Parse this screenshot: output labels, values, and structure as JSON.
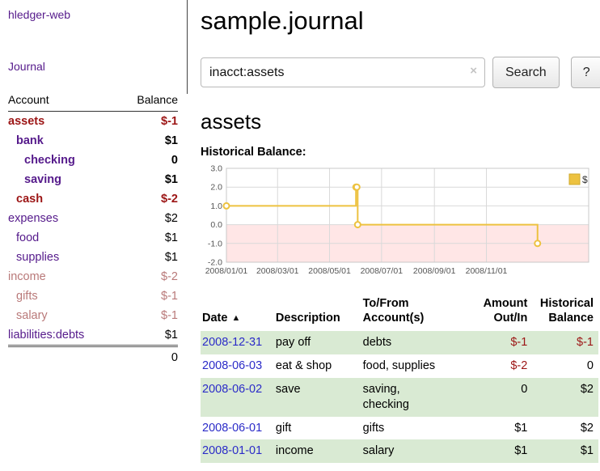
{
  "app": {
    "title": "hledger-web",
    "journal_link": "Journal"
  },
  "sidebar": {
    "header": {
      "account": "Account",
      "balance": "Balance"
    },
    "accounts": [
      {
        "name": "assets",
        "depth": 0,
        "bold": true,
        "balance": "$-1"
      },
      {
        "name": "bank",
        "depth": 1,
        "bold": true,
        "balance": "$1"
      },
      {
        "name": "checking",
        "depth": 2,
        "bold": true,
        "balance": "0"
      },
      {
        "name": "saving",
        "depth": 2,
        "bold": true,
        "balance": "$1"
      },
      {
        "name": "cash",
        "depth": 1,
        "bold": true,
        "balance": "$-2"
      },
      {
        "name": "expenses",
        "depth": 0,
        "bold": false,
        "balance": "$2"
      },
      {
        "name": "food",
        "depth": 1,
        "bold": false,
        "balance": "$1"
      },
      {
        "name": "supplies",
        "depth": 1,
        "bold": false,
        "balance": "$1"
      },
      {
        "name": "income",
        "depth": 0,
        "bold": false,
        "balance": "$-2"
      },
      {
        "name": "gifts",
        "depth": 1,
        "bold": false,
        "balance": "$-1"
      },
      {
        "name": "salary",
        "depth": 1,
        "bold": false,
        "balance": "$-1"
      },
      {
        "name": "liabilities:debts",
        "depth": 0,
        "bold": false,
        "balance": "$1"
      }
    ],
    "total": "0"
  },
  "main": {
    "title": "sample.journal",
    "search": {
      "value": "inacct:assets",
      "clear": "×",
      "button": "Search",
      "help": "?"
    },
    "heading": "assets"
  },
  "chart_data": {
    "type": "line",
    "step": true,
    "title": "Historical Balance:",
    "series": [
      {
        "name": "$",
        "points": [
          [
            "2008-01-01",
            1
          ],
          [
            "2008-06-01",
            2
          ],
          [
            "2008-06-02",
            2
          ],
          [
            "2008-06-03",
            0
          ],
          [
            "2008-12-31",
            -1
          ]
        ]
      }
    ],
    "ylim": [
      -2,
      3
    ],
    "yticks": [
      3.0,
      2.0,
      1.0,
      0.0,
      -1.0,
      -2.0
    ],
    "xticks": [
      "2008/01/01",
      "2008/03/01",
      "2008/05/01",
      "2008/07/01",
      "2008/09/01",
      "2008/11/01"
    ],
    "legend": {
      "label": "$",
      "position": "top-right"
    },
    "line_color": "#edc240",
    "marker_fill": "#ffffff",
    "negative_region_color": "#ffd2d2",
    "grid": true
  },
  "table": {
    "headers": [
      {
        "label": "Date",
        "sort": "▲"
      },
      {
        "label": "Description"
      },
      {
        "label": "To/From\nAccount(s)"
      },
      {
        "label": "Amount\nOut/In"
      },
      {
        "label": "Historical\nBalance"
      }
    ],
    "rows": [
      {
        "date": "2008-12-31",
        "description": "pay off",
        "accounts": "debts",
        "amount": "$-1",
        "balance": "$-1"
      },
      {
        "date": "2008-06-03",
        "description": "eat & shop",
        "accounts": "food, supplies",
        "amount": "$-2",
        "balance": "0"
      },
      {
        "date": "2008-06-02",
        "description": "save",
        "accounts": "saving,\nchecking",
        "amount": "0",
        "balance": "$2"
      },
      {
        "date": "2008-06-01",
        "description": "gift",
        "accounts": "gifts",
        "amount": "$1",
        "balance": "$2"
      },
      {
        "date": "2008-01-01",
        "description": "income",
        "accounts": "salary",
        "amount": "$1",
        "balance": "$1"
      }
    ]
  },
  "colors": {
    "link_purple": "#551A8B",
    "link_blue": "#2b2bc8",
    "negative_strong": "#9c1515",
    "negative_weak": "#b97979",
    "row_green": "#d9ead3",
    "chart_gold": "#edc240",
    "chart_pink": "#ffd2d2"
  }
}
